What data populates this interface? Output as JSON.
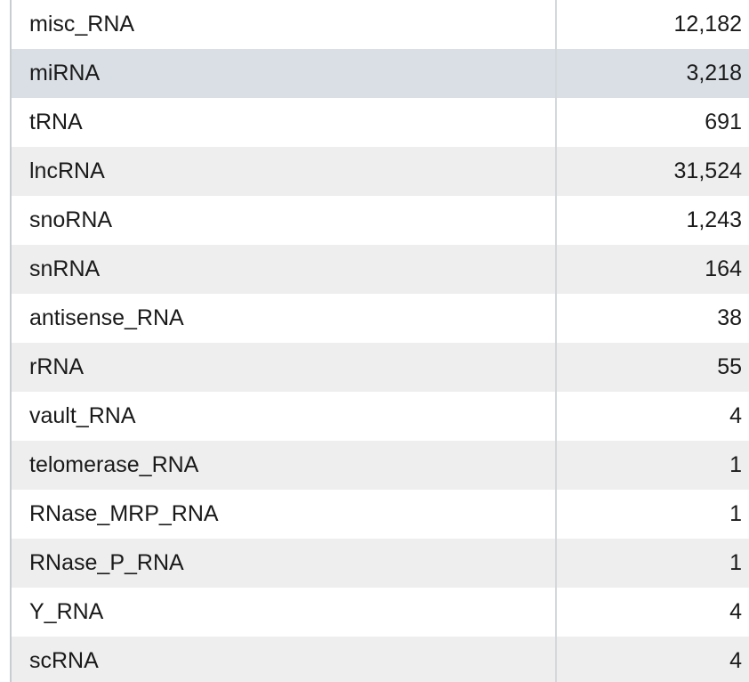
{
  "table": {
    "selected_row": 1,
    "rows": [
      {
        "type": "misc_RNA",
        "count": "12,182"
      },
      {
        "type": "miRNA",
        "count": "3,218"
      },
      {
        "type": "tRNA",
        "count": "691"
      },
      {
        "type": "lncRNA",
        "count": "31,524"
      },
      {
        "type": "snoRNA",
        "count": "1,243"
      },
      {
        "type": "snRNA",
        "count": "164"
      },
      {
        "type": "antisense_RNA",
        "count": "38"
      },
      {
        "type": "rRNA",
        "count": "55"
      },
      {
        "type": "vault_RNA",
        "count": "4"
      },
      {
        "type": "telomerase_RNA",
        "count": "1"
      },
      {
        "type": "RNase_MRP_RNA",
        "count": "1"
      },
      {
        "type": "RNase_P_RNA",
        "count": "1"
      },
      {
        "type": "Y_RNA",
        "count": "4"
      },
      {
        "type": "scRNA",
        "count": "4"
      }
    ]
  }
}
